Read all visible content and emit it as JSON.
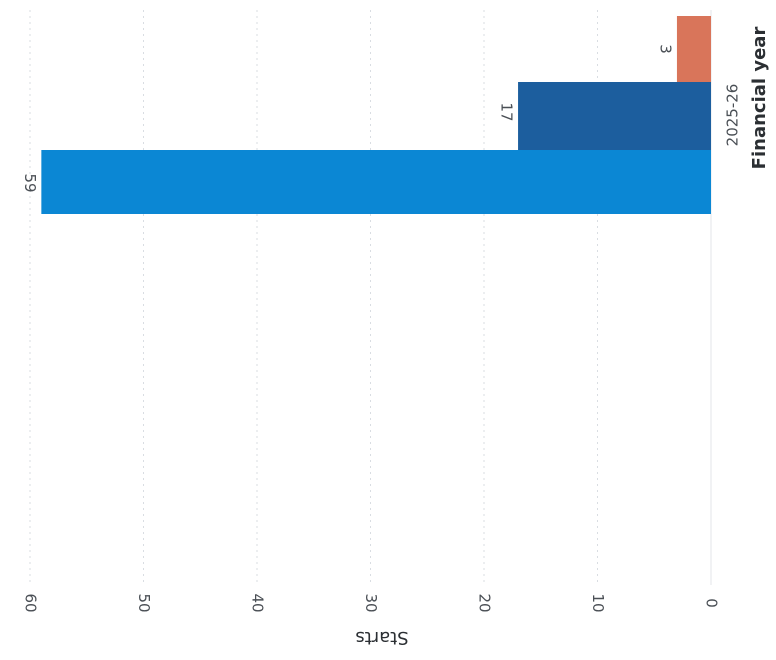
{
  "chart_data": {
    "type": "bar",
    "orientation": "rotated",
    "categories": [
      "2025-26"
    ],
    "series": [
      {
        "values": [
          59
        ],
        "color": "#0b87d4"
      },
      {
        "values": [
          17
        ],
        "color": "#1c5e9e"
      },
      {
        "values": [
          3
        ],
        "color": "#d9755a"
      }
    ],
    "data_labels": [
      "59",
      "17",
      "3"
    ],
    "xlabel": "Financial year",
    "ylabel": "Starts",
    "yticks": [
      0,
      10,
      20,
      30,
      40,
      50,
      60
    ],
    "ylim": [
      0,
      60
    ],
    "grid": true
  }
}
